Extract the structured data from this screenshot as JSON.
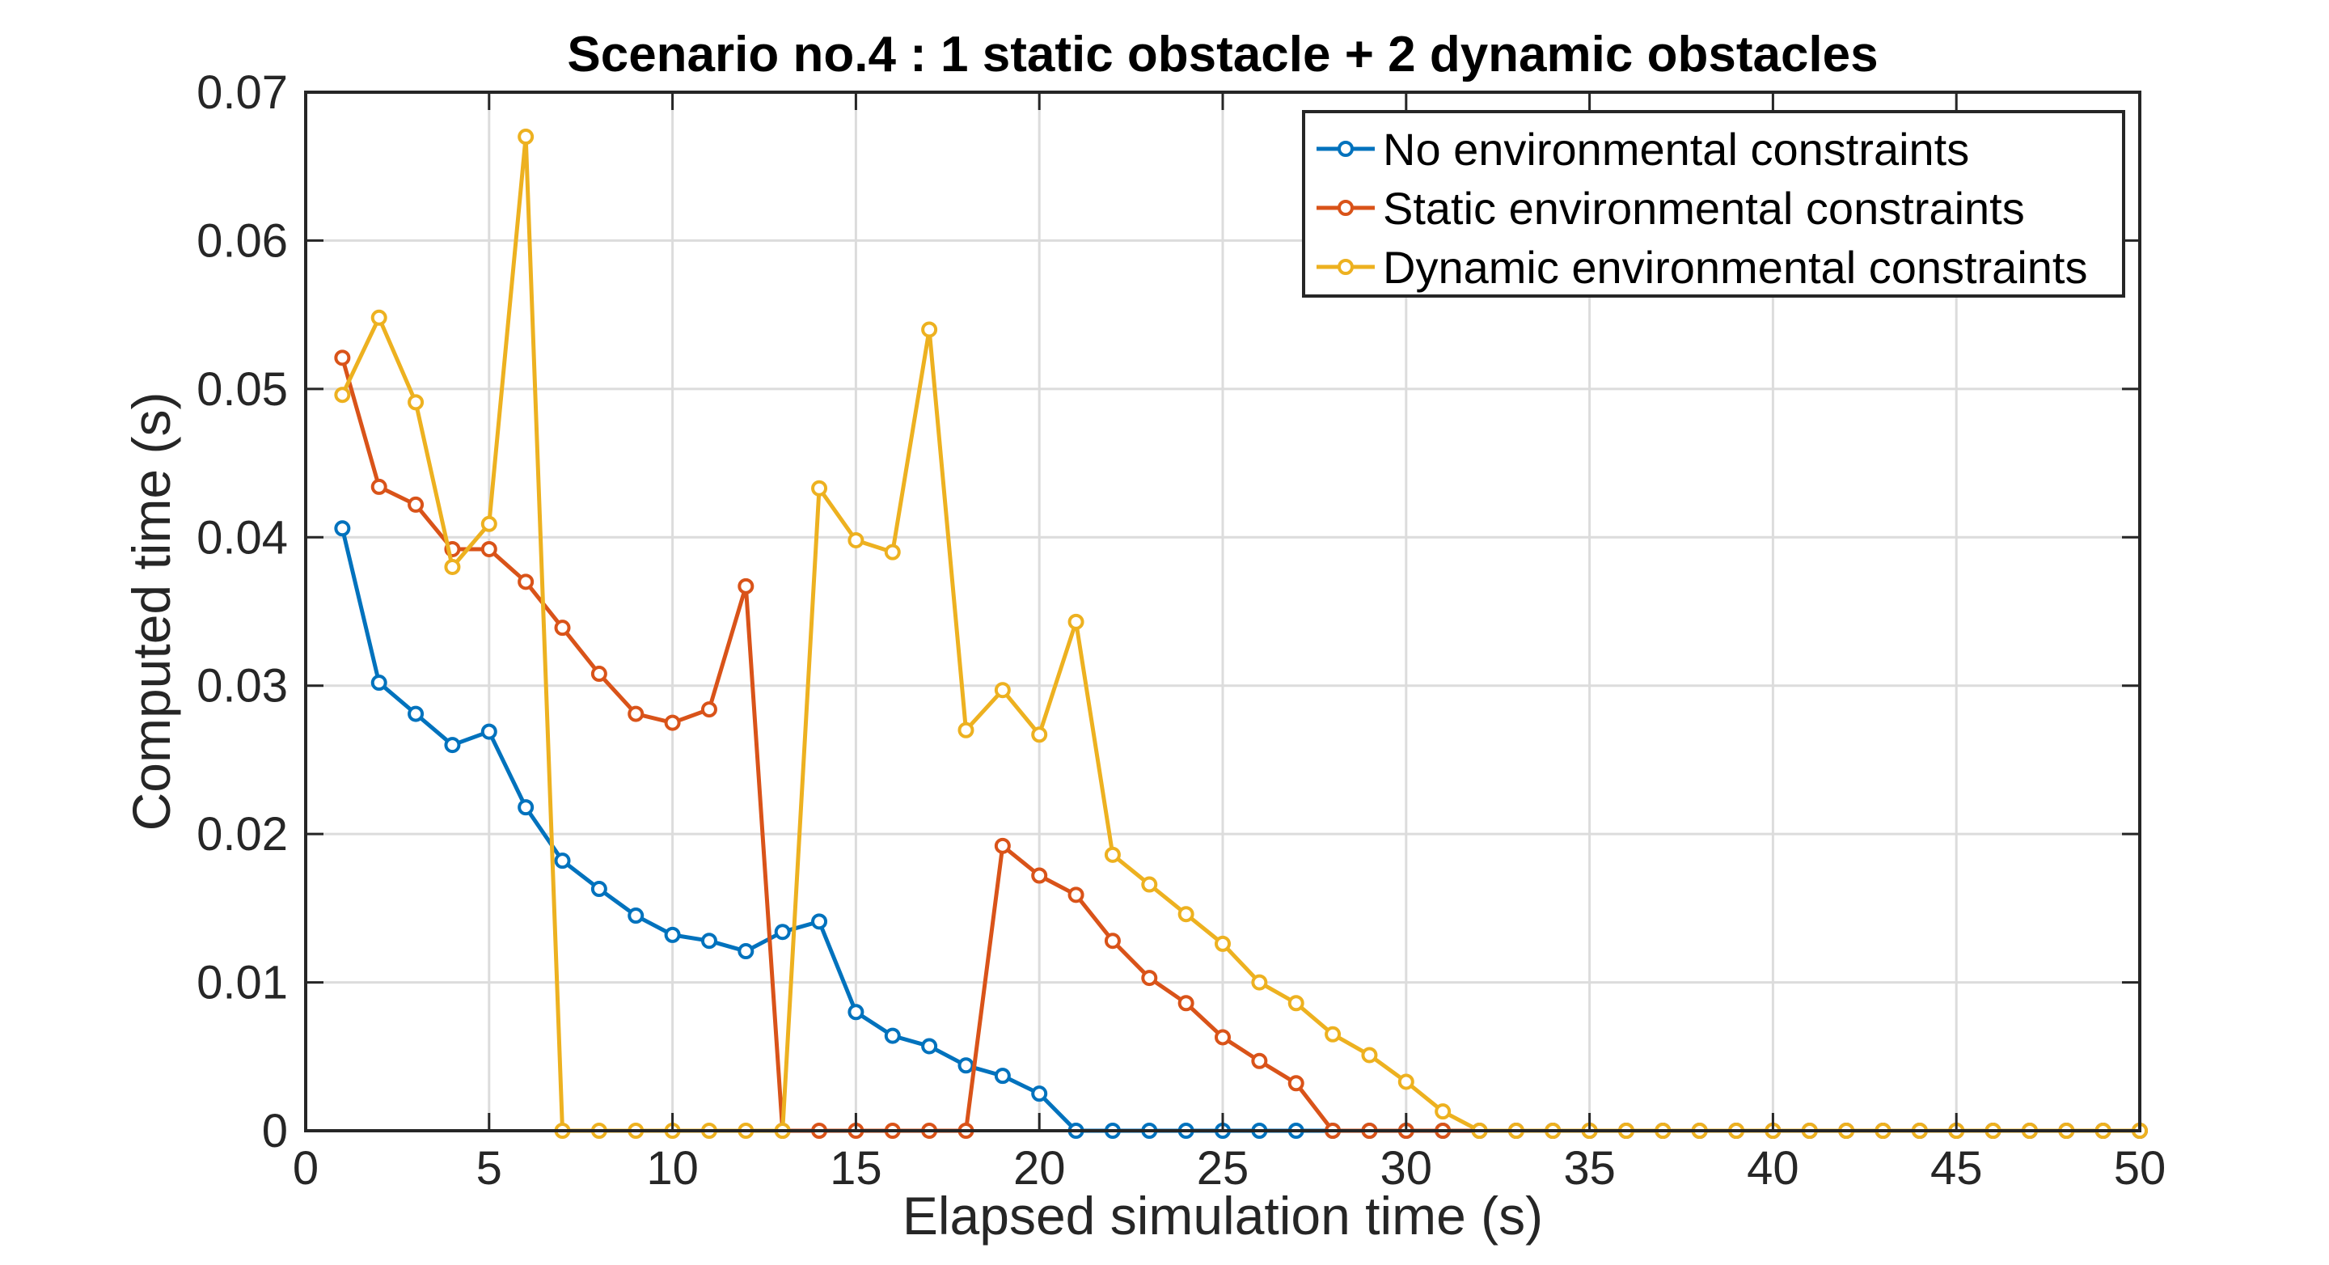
{
  "chart_data": {
    "type": "line",
    "title": "Scenario no.4 : 1 static obstacle + 2 dynamic obstacles",
    "xlabel": "Elapsed simulation time (s)",
    "ylabel": "Computed time (s)",
    "xlim": [
      0,
      50
    ],
    "ylim": [
      0,
      0.07
    ],
    "xticks": [
      "0",
      "5",
      "10",
      "15",
      "20",
      "25",
      "30",
      "35",
      "40",
      "45",
      "50"
    ],
    "yticks": [
      "0",
      "0.01",
      "0.02",
      "0.03",
      "0.04",
      "0.05",
      "0.06",
      "0.07"
    ],
    "grid": true,
    "legend_position": "top-right",
    "x": [
      1,
      2,
      3,
      4,
      5,
      6,
      7,
      8,
      9,
      10,
      11,
      12,
      13,
      14,
      15,
      16,
      17,
      18,
      19,
      20,
      21,
      22,
      23,
      24,
      25,
      26,
      27,
      28,
      29,
      30,
      31,
      32,
      33,
      34,
      35,
      36,
      37,
      38,
      39,
      40,
      41,
      42,
      43,
      44,
      45,
      46,
      47,
      48,
      49,
      50
    ],
    "series": [
      {
        "name": "No environmental constraints",
        "color": "#0072BD",
        "values": [
          0.0406,
          0.0302,
          0.0281,
          0.026,
          0.0269,
          0.0218,
          0.0182,
          0.0163,
          0.0145,
          0.0132,
          0.0128,
          0.0121,
          0.0134,
          0.0141,
          0.008,
          0.0064,
          0.0057,
          0.0044,
          0.0037,
          0.0025,
          0,
          0,
          0,
          0,
          0,
          0,
          0,
          0,
          0,
          0,
          0,
          0,
          0,
          0,
          0,
          0,
          0,
          0,
          0,
          0,
          0,
          0,
          0,
          0,
          0,
          0,
          0,
          0,
          0,
          0
        ]
      },
      {
        "name": "Static environmental constraints",
        "color": "#D95319",
        "values": [
          0.0521,
          0.0434,
          0.0422,
          0.0392,
          0.0392,
          0.037,
          0.0339,
          0.0308,
          0.0281,
          0.0275,
          0.0284,
          0.0367,
          0,
          0,
          0,
          0,
          0,
          0,
          0.0192,
          0.0172,
          0.0159,
          0.0128,
          0.0103,
          0.0086,
          0.0063,
          0.0047,
          0.0032,
          0,
          0,
          0,
          0,
          0,
          0,
          0,
          0,
          0,
          0,
          0,
          0,
          0,
          0,
          0,
          0,
          0,
          0,
          0,
          0,
          0,
          0,
          0
        ]
      },
      {
        "name": "Dynamic environmental constraints",
        "color": "#EDB120",
        "values": [
          0.0496,
          0.0548,
          0.0491,
          0.038,
          0.0409,
          0.067,
          0,
          0,
          0,
          0,
          0,
          0,
          0,
          0.0433,
          0.0398,
          0.039,
          0.054,
          0.027,
          0.0297,
          0.0267,
          0.0343,
          0.0186,
          0.0166,
          0.0146,
          0.0126,
          0.01,
          0.0086,
          0.0065,
          0.0051,
          0.0033,
          0.0013,
          0,
          0,
          0,
          0,
          0,
          0,
          0,
          0,
          0,
          0,
          0,
          0,
          0,
          0,
          0,
          0,
          0,
          0,
          0
        ]
      }
    ]
  }
}
